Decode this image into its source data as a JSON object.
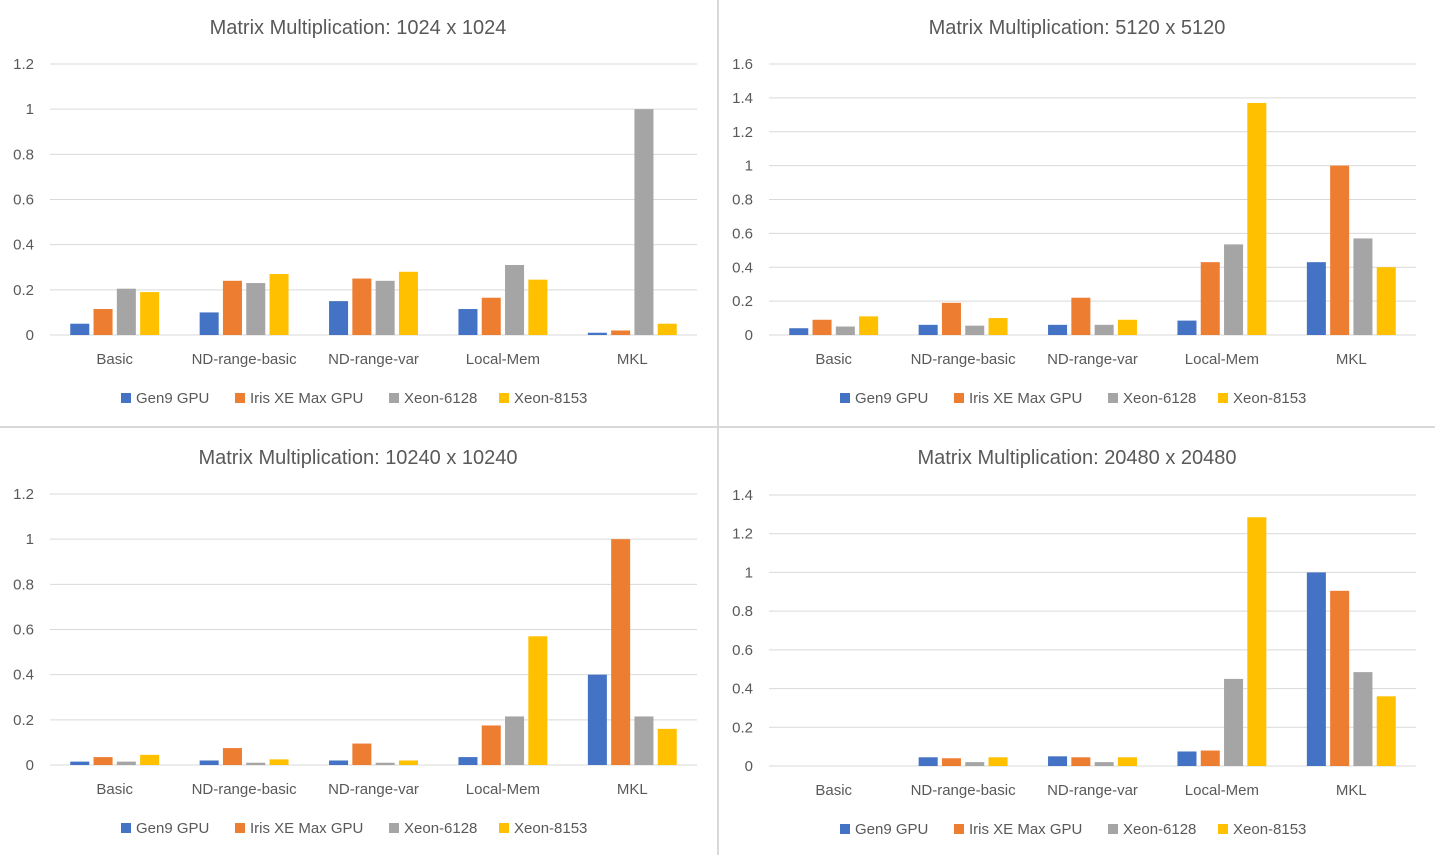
{
  "colors": {
    "series": [
      "#4472c4",
      "#ed7d31",
      "#a5a5a5",
      "#ffc000"
    ],
    "gridline": "#d9d9d9",
    "text": "#595959"
  },
  "chart_data": [
    {
      "type": "bar",
      "title": "Matrix Multiplication: 1024 x 1024",
      "categories": [
        "Basic",
        "ND-range-basic",
        "ND-range-var",
        "Local-Mem",
        "MKL"
      ],
      "ylim": [
        0,
        1.2
      ],
      "yticks": [
        "0",
        "0.2",
        "0.4",
        "0.6",
        "0.8",
        "1",
        "1.2"
      ],
      "grid": true,
      "legend": "bottom",
      "series": [
        {
          "name": "Gen9 GPU",
          "values": [
            0.05,
            0.1,
            0.15,
            0.115,
            0.01
          ]
        },
        {
          "name": "Iris XE Max GPU",
          "values": [
            0.115,
            0.24,
            0.25,
            0.165,
            0.02
          ]
        },
        {
          "name": "Xeon-6128",
          "values": [
            0.205,
            0.23,
            0.24,
            0.31,
            1.0
          ]
        },
        {
          "name": "Xeon-8153",
          "values": [
            0.19,
            0.27,
            0.28,
            0.245,
            0.05
          ]
        }
      ]
    },
    {
      "type": "bar",
      "title": "Matrix Multiplication: 5120 x 5120",
      "categories": [
        "Basic",
        "ND-range-basic",
        "ND-range-var",
        "Local-Mem",
        "MKL"
      ],
      "ylim": [
        0,
        1.6
      ],
      "yticks": [
        "0",
        "0.2",
        "0.4",
        "0.6",
        "0.8",
        "1",
        "1.2",
        "1.4",
        "1.6"
      ],
      "grid": true,
      "legend": "bottom",
      "series": [
        {
          "name": "Gen9 GPU",
          "values": [
            0.04,
            0.06,
            0.06,
            0.085,
            0.43
          ]
        },
        {
          "name": "Iris XE Max GPU",
          "values": [
            0.09,
            0.19,
            0.22,
            0.43,
            1.0
          ]
        },
        {
          "name": "Xeon-6128",
          "values": [
            0.05,
            0.055,
            0.06,
            0.535,
            0.57
          ]
        },
        {
          "name": "Xeon-8153",
          "values": [
            0.11,
            0.1,
            0.09,
            1.37,
            0.4
          ]
        }
      ]
    },
    {
      "type": "bar",
      "title": "Matrix Multiplication: 10240 x 10240",
      "categories": [
        "Basic",
        "ND-range-basic",
        "ND-range-var",
        "Local-Mem",
        "MKL"
      ],
      "ylim": [
        0,
        1.2
      ],
      "yticks": [
        "0",
        "0.2",
        "0.4",
        "0.6",
        "0.8",
        "1",
        "1.2"
      ],
      "grid": true,
      "legend": "bottom",
      "series": [
        {
          "name": "Gen9 GPU",
          "values": [
            0.015,
            0.02,
            0.02,
            0.035,
            0.4
          ]
        },
        {
          "name": "Iris XE Max GPU",
          "values": [
            0.035,
            0.075,
            0.095,
            0.175,
            1.0
          ]
        },
        {
          "name": "Xeon-6128",
          "values": [
            0.015,
            0.01,
            0.01,
            0.215,
            0.215
          ]
        },
        {
          "name": "Xeon-8153",
          "values": [
            0.045,
            0.025,
            0.02,
            0.57,
            0.16
          ]
        }
      ]
    },
    {
      "type": "bar",
      "title": "Matrix Multiplication: 20480 x 20480",
      "categories": [
        "Basic",
        "ND-range-basic",
        "ND-range-var",
        "Local-Mem",
        "MKL"
      ],
      "ylim": [
        0,
        1.4
      ],
      "yticks": [
        "0",
        "0.2",
        "0.4",
        "0.6",
        "0.8",
        "1",
        "1.2",
        "1.4"
      ],
      "grid": true,
      "legend": "bottom",
      "series": [
        {
          "name": "Gen9 GPU",
          "values": [
            0,
            0.045,
            0.05,
            0.075,
            1.0
          ]
        },
        {
          "name": "Iris XE Max GPU",
          "values": [
            0,
            0.04,
            0.045,
            0.08,
            0.905
          ]
        },
        {
          "name": "Xeon-6128",
          "values": [
            0,
            0.02,
            0.02,
            0.45,
            0.485
          ]
        },
        {
          "name": "Xeon-8153",
          "values": [
            0,
            0.045,
            0.045,
            1.285,
            0.36
          ]
        }
      ]
    }
  ]
}
